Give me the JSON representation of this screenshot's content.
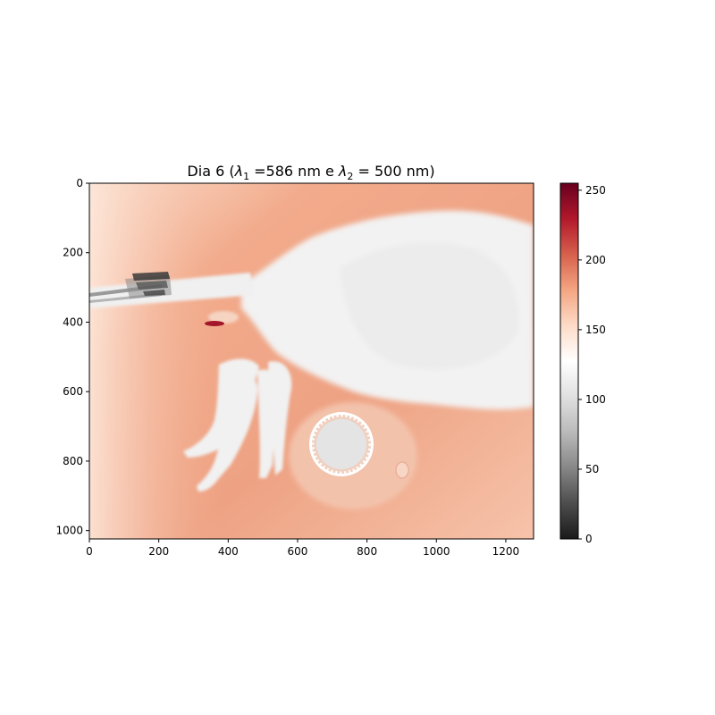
{
  "chart_data": {
    "type": "heatmap",
    "title": "Dia 6 (λ₁ =586 nm e λ₂ = 500 nm)",
    "title_parts": {
      "prefix": "Dia 6 (",
      "lambda": "λ",
      "sub1": "1",
      "mid": " =586 nm e ",
      "sub2": "2",
      "suffix": " = 500 nm)"
    },
    "xlabel": "",
    "ylabel": "",
    "image_size": {
      "width": 1280,
      "height": 1024
    },
    "xlim": [
      0,
      1280
    ],
    "ylim": [
      1024,
      0
    ],
    "xticks": [
      0,
      200,
      400,
      600,
      800,
      1000,
      1200
    ],
    "yticks": [
      0,
      200,
      400,
      600,
      800,
      1000
    ],
    "colormap": "RdGy_r",
    "colorbar": {
      "range": [
        0,
        255
      ],
      "ticks": [
        0,
        50,
        100,
        150,
        200,
        250
      ],
      "colors": [
        "#1a1a1a",
        "#4d4d4d",
        "#878787",
        "#bababa",
        "#e0e0e0",
        "#ffffff",
        "#fddbc7",
        "#f4a582",
        "#d6604d",
        "#b2182b",
        "#67001f"
      ]
    },
    "background_level": 195,
    "subject_level": 128,
    "description_regions": {
      "body": "light/near-white mouse body occupying upper-right",
      "tube": "dark striped tube entering from left near y≈300",
      "ring": "circular target near x≈750, y≈770",
      "hotspot": "dark red spot near x≈370, y≈400"
    },
    "grid": false,
    "legend": "none"
  }
}
